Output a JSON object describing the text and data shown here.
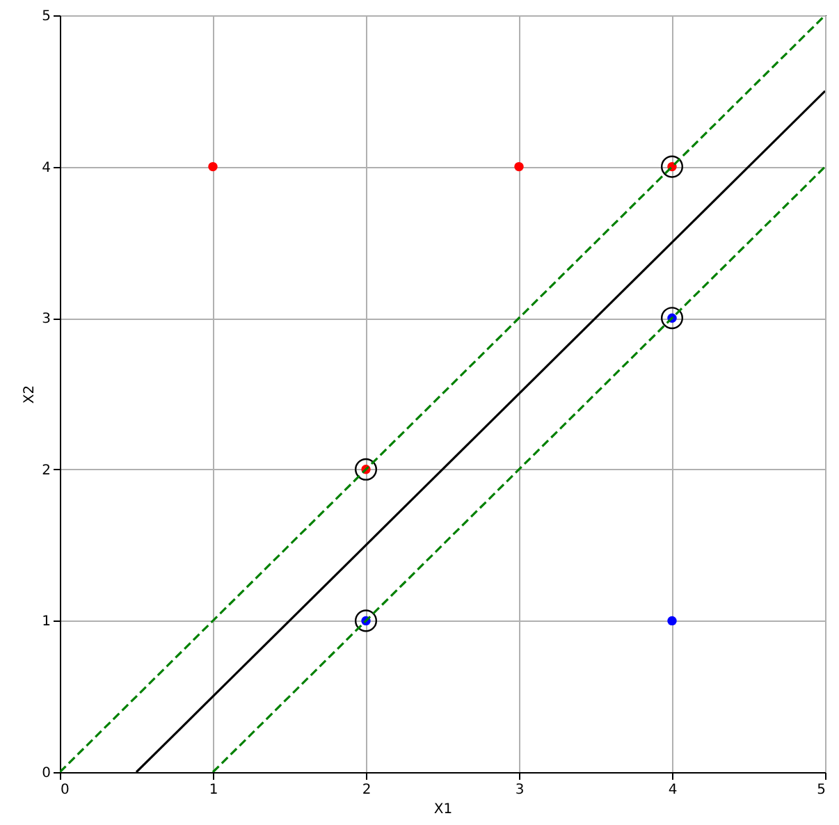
{
  "chart_data": {
    "type": "scatter",
    "xlabel": "X1",
    "ylabel": "X2",
    "xlim": [
      0,
      5
    ],
    "ylim": [
      0,
      5
    ],
    "xticks": [
      {
        "value": 0,
        "label": "0"
      },
      {
        "value": 1,
        "label": "1"
      },
      {
        "value": 2,
        "label": "2"
      },
      {
        "value": 3,
        "label": "3"
      },
      {
        "value": 4,
        "label": "4"
      },
      {
        "value": 5,
        "label": "5"
      }
    ],
    "yticks": [
      {
        "value": 0,
        "label": "0"
      },
      {
        "value": 1,
        "label": "1"
      },
      {
        "value": 2,
        "label": "2"
      },
      {
        "value": 3,
        "label": "3"
      },
      {
        "value": 4,
        "label": "4"
      },
      {
        "value": 5,
        "label": "5"
      }
    ],
    "grid": true,
    "series": [
      {
        "color": "#ff0000",
        "marker": "circle",
        "x": [
          1,
          3,
          4,
          2
        ],
        "values": [
          4,
          4,
          4,
          2
        ]
      },
      {
        "color": "#0000ff",
        "marker": "circle",
        "x": [
          4,
          2,
          4
        ],
        "values": [
          3,
          1,
          1
        ]
      },
      {
        "color": "#000000",
        "marker": "circle",
        "x": [
          4,
          2,
          4,
          2
        ],
        "values": [
          4,
          2,
          3,
          1
        ]
      },
      {
        "type": "line",
        "color": "#000000",
        "line_style": "solid",
        "x": [
          0.5,
          5
        ],
        "values": [
          0,
          4.5
        ]
      },
      {
        "type": "line",
        "color": "#008000",
        "line_style": "dashed",
        "x": [
          0,
          5
        ],
        "values": [
          0,
          5
        ]
      },
      {
        "type": "line",
        "color": "#008000",
        "line_style": "dashed",
        "x": [
          1,
          5
        ],
        "values": [
          0,
          4
        ]
      }
    ]
  }
}
